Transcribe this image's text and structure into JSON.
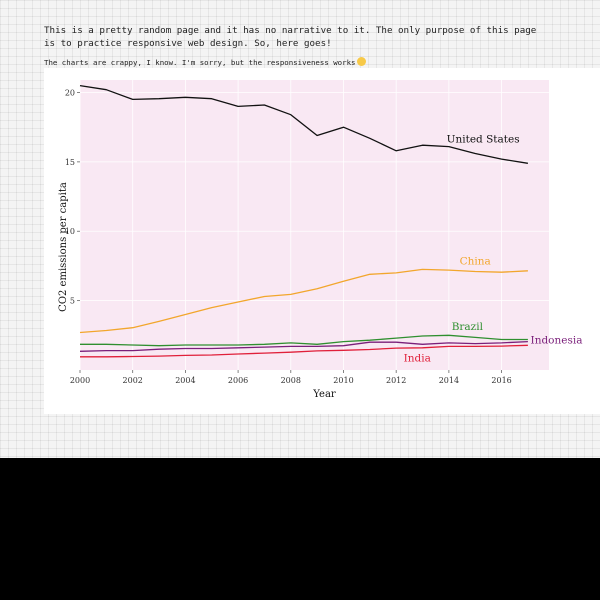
{
  "intro_text": "This is a pretty random page and it has no narrative to it. The only purpose of this page is to practice responsive web design. So, here goes!",
  "note_text": "The charts are crappy, I know. I'm sorry, but the responsiveness works",
  "chart_data": {
    "type": "line",
    "xlabel": "Year",
    "ylabel": "CO2 emissions per capita",
    "xlim": [
      2000,
      2017.8
    ],
    "ylim": [
      0,
      20.9
    ],
    "x_ticks": [
      2000,
      2002,
      2004,
      2006,
      2008,
      2010,
      2012,
      2014,
      2016
    ],
    "y_ticks": [
      5,
      10,
      15,
      20
    ],
    "panel_background": "#f9e8f3",
    "grid": true,
    "legend": "direct labels at line ends",
    "x": [
      2000,
      2001,
      2002,
      2003,
      2004,
      2005,
      2006,
      2007,
      2008,
      2009,
      2010,
      2011,
      2012,
      2013,
      2014,
      2015,
      2016,
      2017
    ],
    "series": [
      {
        "name": "United States",
        "color": "#111111",
        "values": [
          20.5,
          20.2,
          19.5,
          19.55,
          19.65,
          19.55,
          19.0,
          19.1,
          18.4,
          16.9,
          17.5,
          16.7,
          15.8,
          16.2,
          16.1,
          15.6,
          15.2,
          14.9
        ]
      },
      {
        "name": "China",
        "color": "#f2a62c",
        "values": [
          2.7,
          2.85,
          3.05,
          3.5,
          4.0,
          4.5,
          4.9,
          5.3,
          5.45,
          5.85,
          6.4,
          6.9,
          7.0,
          7.25,
          7.2,
          7.1,
          7.05,
          7.15
        ]
      },
      {
        "name": "Brazil",
        "color": "#2f8f2f",
        "values": [
          1.85,
          1.85,
          1.8,
          1.75,
          1.8,
          1.8,
          1.8,
          1.85,
          1.95,
          1.85,
          2.05,
          2.15,
          2.3,
          2.45,
          2.5,
          2.35,
          2.2,
          2.2
        ]
      },
      {
        "name": "Indonesia",
        "color": "#7a1f7a",
        "values": [
          1.35,
          1.4,
          1.4,
          1.5,
          1.55,
          1.55,
          1.6,
          1.65,
          1.7,
          1.7,
          1.75,
          2.0,
          2.0,
          1.85,
          1.95,
          1.9,
          1.95,
          2.05
        ]
      },
      {
        "name": "India",
        "color": "#e0203a",
        "values": [
          0.95,
          0.95,
          0.97,
          1.0,
          1.05,
          1.08,
          1.15,
          1.22,
          1.28,
          1.38,
          1.42,
          1.48,
          1.58,
          1.6,
          1.7,
          1.7,
          1.72,
          1.78
        ]
      }
    ]
  }
}
